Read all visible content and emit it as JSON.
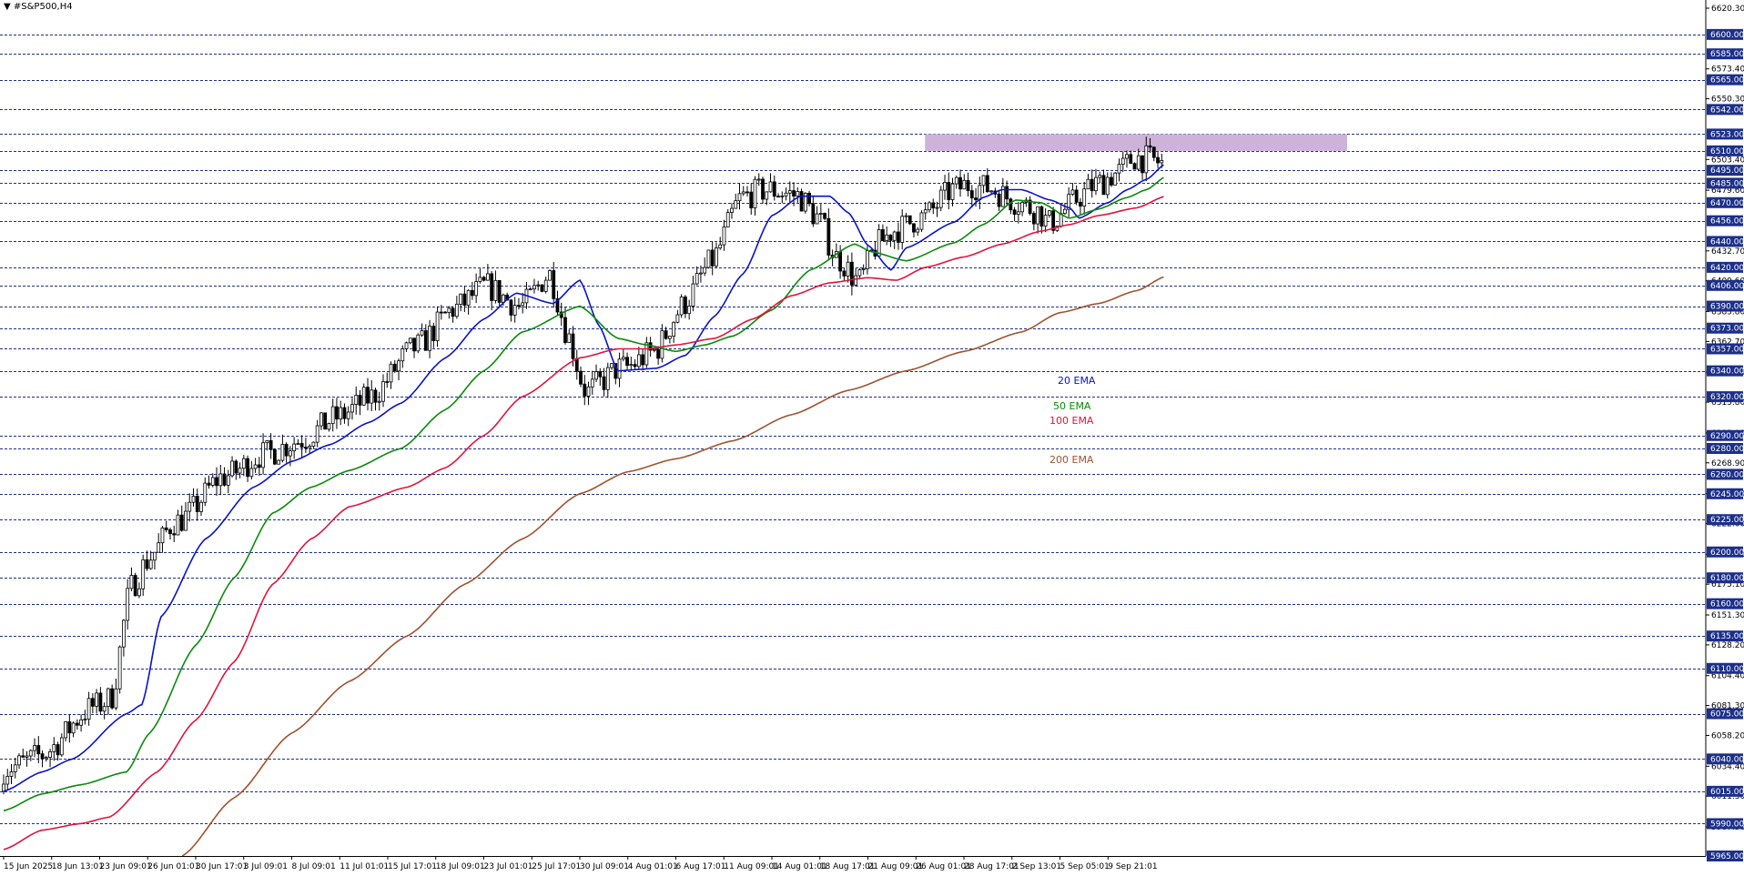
{
  "symbol_title": "#S&P500,H4",
  "colors": {
    "ema20": "#0a12c8",
    "ema50": "#0a8a0a",
    "ema100": "#e0143c",
    "ema200": "#a0522d",
    "level_line": "#1c2f8a",
    "zone": "#cdb3d9",
    "candle": "#000000",
    "tag_bg": "#1c2f8a"
  },
  "ema_labels": {
    "ema20": "20 EMA",
    "ema50": "50 EMA",
    "ema100": "100 EMA",
    "ema200": "200 EMA"
  },
  "chart_data": {
    "type": "candlestick",
    "timeframe": "H4",
    "ylim": [
      5965,
      6620.3
    ],
    "price_axis_ticks": [
      6620.3,
      6573.4,
      6550.3,
      6503.4,
      6479.6,
      6432.7,
      6409.6,
      6385.8,
      6362.7,
      6338.9,
      6315.8,
      6292.0,
      6268.9,
      6245.1,
      6222.0,
      6198.2,
      6175.1,
      6151.3,
      6128.2,
      6104.4,
      6081.3,
      6058.2,
      6034.4,
      6011.3,
      5987.5
    ],
    "horizontal_levels": [
      6600.0,
      6585.0,
      6565.0,
      6542.0,
      6523.0,
      6510.0,
      6495.0,
      6485.0,
      6470.0,
      6456.0,
      6440.0,
      6420.0,
      6406.0,
      6390.0,
      6373.0,
      6357.0,
      6340.0,
      6320.0,
      6290.0,
      6280.0,
      6260.0,
      6245.0,
      6225.0,
      6200.0,
      6180.0,
      6160.0,
      6135.0,
      6110.0,
      6075.0,
      6040.0,
      6015.0,
      5990.0,
      5965.0
    ],
    "time_labels": [
      "15 Jun 2025",
      "18 Jun 13:01",
      "23 Jun 09:01",
      "26 Jun 01:01",
      "30 Jun 17:01",
      "3 Jul 09:01",
      "8 Jul 09:01",
      "11 Jul 01:01",
      "15 Jul 17:01",
      "18 Jul 09:01",
      "23 Jul 01:01",
      "25 Jul 17:01",
      "30 Jul 09:01",
      "4 Aug 01:01",
      "6 Aug 17:01",
      "11 Aug 09:01",
      "14 Aug 01:01",
      "18 Aug 17:01",
      "21 Aug 09:01",
      "26 Aug 01:01",
      "28 Aug 17:01",
      "2 Sep 13:01",
      "5 Sep 05:01",
      "9 Sep 21:01"
    ],
    "resistance_zone": {
      "from": 6510.0,
      "to": 6523.0,
      "start_label": "26 Aug 01:01"
    },
    "series": [
      {
        "name": "20 EMA",
        "anchors": [
          [
            0,
            6015
          ],
          [
            2,
            6030
          ],
          [
            3.6,
            6040
          ],
          [
            6.4,
            6075
          ],
          [
            7.2,
            6082
          ],
          [
            8.2,
            6150
          ],
          [
            10.5,
            6210
          ],
          [
            13,
            6250
          ],
          [
            15,
            6270
          ],
          [
            17,
            6283
          ],
          [
            19,
            6300
          ],
          [
            20.7,
            6315
          ],
          [
            23,
            6350
          ],
          [
            25,
            6380
          ],
          [
            26.7,
            6400
          ],
          [
            28.6,
            6392
          ],
          [
            30,
            6410
          ],
          [
            31,
            6375
          ],
          [
            32,
            6340
          ],
          [
            33,
            6341
          ],
          [
            34,
            6342
          ],
          [
            35.5,
            6352
          ],
          [
            37,
            6382
          ],
          [
            38.5,
            6415
          ],
          [
            40,
            6460
          ],
          [
            41.5,
            6475
          ],
          [
            43,
            6475
          ],
          [
            44,
            6462
          ],
          [
            45,
            6437
          ],
          [
            46.2,
            6418
          ],
          [
            47,
            6435
          ],
          [
            49.5,
            6455
          ],
          [
            51,
            6474
          ],
          [
            52,
            6480
          ],
          [
            53,
            6480
          ],
          [
            54.5,
            6472
          ],
          [
            55.5,
            6466
          ],
          [
            56,
            6458
          ],
          [
            57.5,
            6470
          ],
          [
            58.5,
            6480
          ],
          [
            59.5,
            6488
          ],
          [
            60.5,
            6500
          ]
        ]
      },
      {
        "name": "50 EMA",
        "anchors": [
          [
            0,
            6000
          ],
          [
            2,
            6013
          ],
          [
            4,
            6020
          ],
          [
            6.4,
            6030
          ],
          [
            7.6,
            6060
          ],
          [
            10,
            6128
          ],
          [
            12,
            6180
          ],
          [
            14,
            6230
          ],
          [
            16,
            6250
          ],
          [
            18,
            6263
          ],
          [
            20.7,
            6280
          ],
          [
            23,
            6310
          ],
          [
            25,
            6340
          ],
          [
            27,
            6370
          ],
          [
            30,
            6390
          ],
          [
            32,
            6365
          ],
          [
            33.5,
            6360
          ],
          [
            35,
            6355
          ],
          [
            36.5,
            6360
          ],
          [
            38,
            6367
          ],
          [
            40,
            6387
          ],
          [
            42,
            6418
          ],
          [
            44.3,
            6438
          ],
          [
            45.2,
            6432
          ],
          [
            47,
            6425
          ],
          [
            49.5,
            6439
          ],
          [
            51,
            6453
          ],
          [
            52.7,
            6472
          ],
          [
            54,
            6470
          ],
          [
            55.5,
            6458
          ],
          [
            57,
            6465
          ],
          [
            58.5,
            6474
          ],
          [
            59.5,
            6480
          ],
          [
            60.5,
            6490
          ]
        ]
      },
      {
        "name": "100 EMA",
        "anchors": [
          [
            0,
            5970
          ],
          [
            2,
            5985
          ],
          [
            4,
            5990
          ],
          [
            5.5,
            5995
          ],
          [
            8,
            6030
          ],
          [
            10,
            6070
          ],
          [
            12,
            6115
          ],
          [
            14,
            6175
          ],
          [
            16,
            6210
          ],
          [
            18,
            6235
          ],
          [
            21,
            6250
          ],
          [
            23,
            6265
          ],
          [
            25,
            6290
          ],
          [
            27,
            6320
          ],
          [
            30,
            6350
          ],
          [
            32,
            6357
          ],
          [
            33.5,
            6357
          ],
          [
            35,
            6360
          ],
          [
            37,
            6365
          ],
          [
            39,
            6380
          ],
          [
            41,
            6398
          ],
          [
            43,
            6408
          ],
          [
            45,
            6412
          ],
          [
            46.5,
            6410
          ],
          [
            48,
            6420
          ],
          [
            50,
            6428
          ],
          [
            52,
            6438
          ],
          [
            54,
            6448
          ],
          [
            55.5,
            6453
          ],
          [
            57,
            6460
          ],
          [
            59,
            6466
          ],
          [
            60.5,
            6475
          ]
        ]
      },
      {
        "name": "200 EMA",
        "anchors": [
          [
            9.3,
            5965
          ],
          [
            12,
            6010
          ],
          [
            15,
            6060
          ],
          [
            18,
            6100
          ],
          [
            21,
            6135
          ],
          [
            24,
            6175
          ],
          [
            27,
            6210
          ],
          [
            30,
            6245
          ],
          [
            32.5,
            6262
          ],
          [
            35,
            6272
          ],
          [
            38,
            6286
          ],
          [
            41,
            6306
          ],
          [
            44,
            6325
          ],
          [
            47,
            6340
          ],
          [
            50,
            6355
          ],
          [
            53,
            6370
          ],
          [
            55,
            6385
          ],
          [
            57,
            6392
          ],
          [
            59,
            6402
          ],
          [
            60.5,
            6413
          ]
        ]
      }
    ]
  }
}
